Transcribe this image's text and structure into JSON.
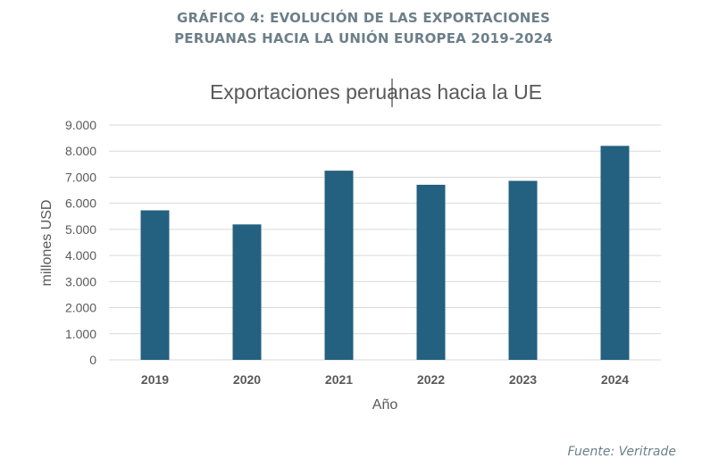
{
  "header": {
    "line1": "GRÁFICO 4: EVOLUCIÓN DE LAS EXPORTACIONES",
    "line2": "PERUANAS HACIA LA UNIÓN EUROPEA 2019-2024"
  },
  "source": "Fuente: Veritrade",
  "colors": {
    "bar": "#24607f",
    "grid": "#d9d9d9",
    "text": "#595959",
    "heading": "#6c7f8a"
  },
  "chart_data": {
    "type": "bar",
    "title": "Exportaciones peruanas hacia la UE",
    "xlabel": "Año",
    "ylabel": "millones USD",
    "categories": [
      "2019",
      "2020",
      "2021",
      "2022",
      "2023",
      "2024"
    ],
    "values": [
      5730,
      5190,
      7250,
      6710,
      6860,
      8200
    ],
    "ylim": [
      0,
      9000
    ],
    "yticks": [
      "0",
      "1.000",
      "2.000",
      "3.000",
      "4.000",
      "5.000",
      "6.000",
      "7.000",
      "8.000",
      "9.000"
    ],
    "grid": true,
    "legend": "none"
  }
}
